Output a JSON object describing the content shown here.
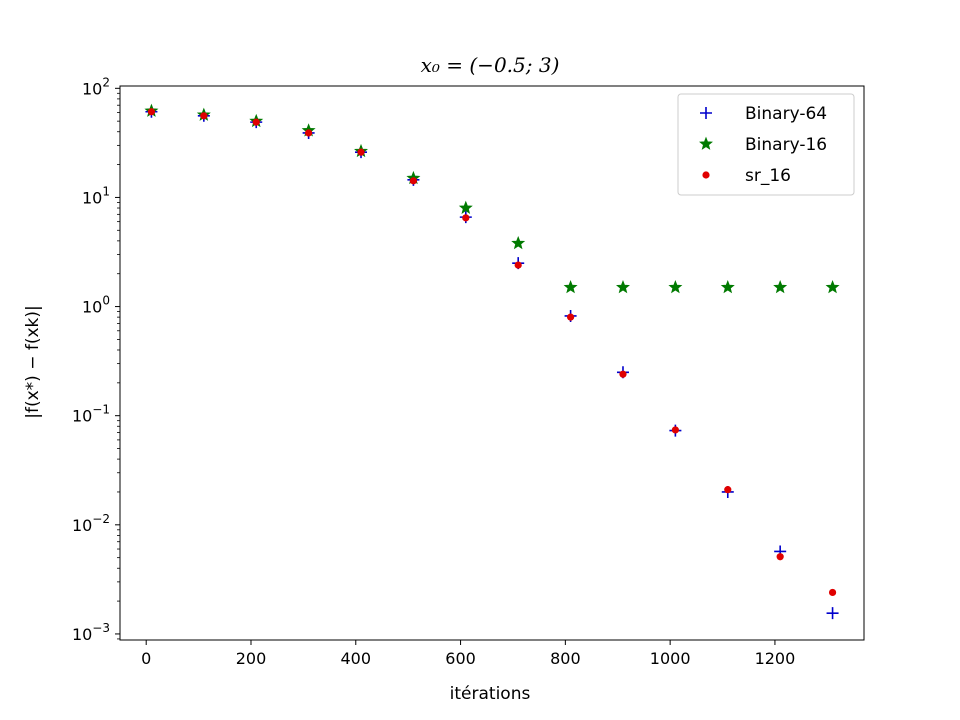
{
  "chart_data": {
    "type": "scatter",
    "title": "x₀ = (−0.5; 3)",
    "xlabel": "itérations",
    "ylabel": "|f(x*) − f(xk)|",
    "xlim": [
      -50,
      1370
    ],
    "ylim": [
      0.00088,
      105
    ],
    "yscale": "log",
    "xticks": [
      0,
      200,
      400,
      600,
      800,
      1000,
      1200
    ],
    "xtick_labels": [
      "0",
      "200",
      "400",
      "600",
      "800",
      "1000",
      "1200"
    ],
    "yticks": [
      0.001,
      0.01,
      0.1,
      1,
      10,
      100
    ],
    "ytick_labels": [
      {
        "base": "10",
        "exp": "−3"
      },
      {
        "base": "10",
        "exp": "−2"
      },
      {
        "base": "10",
        "exp": "−1"
      },
      {
        "base": "10",
        "exp": "0"
      },
      {
        "base": "10",
        "exp": "1"
      },
      {
        "base": "10",
        "exp": "2"
      }
    ],
    "grid": false,
    "legend_position": "top-right",
    "series": [
      {
        "name": "Binary-64",
        "marker": "plus",
        "color": "#0000cc",
        "x": [
          10,
          110,
          210,
          310,
          410,
          510,
          610,
          710,
          810,
          910,
          1010,
          1110,
          1210,
          1310
        ],
        "y": [
          61,
          56,
          49,
          39,
          26,
          14.5,
          6.6,
          2.5,
          0.82,
          0.25,
          0.073,
          0.02,
          0.0057,
          0.00155
        ]
      },
      {
        "name": "Binary-16",
        "marker": "star",
        "color": "#007a00",
        "x": [
          10,
          110,
          210,
          310,
          410,
          510,
          610,
          710,
          810,
          910,
          1010,
          1110,
          1210,
          1310
        ],
        "y": [
          62,
          57,
          50,
          41,
          26.5,
          15,
          8,
          3.8,
          1.5,
          1.5,
          1.5,
          1.5,
          1.5,
          1.5
        ]
      },
      {
        "name": "sr_16",
        "marker": "dot",
        "color": "#e00000",
        "x": [
          10,
          110,
          210,
          310,
          410,
          510,
          610,
          710,
          810,
          910,
          1010,
          1110,
          1210,
          1310
        ],
        "y": [
          61,
          56,
          49,
          39,
          26,
          14.2,
          6.5,
          2.4,
          0.8,
          0.24,
          0.074,
          0.021,
          0.0051,
          0.0024
        ]
      }
    ]
  }
}
